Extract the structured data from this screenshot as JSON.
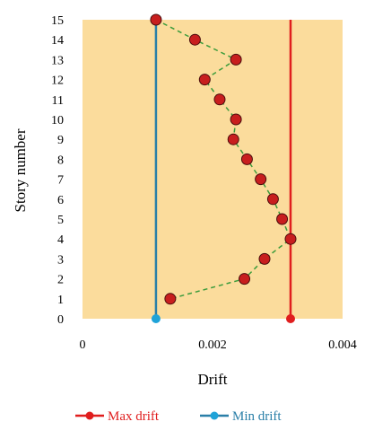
{
  "chart_data": {
    "type": "line",
    "xlabel": "Drift",
    "ylabel": "Story number",
    "xlim": [
      0,
      0.004
    ],
    "ylim": [
      0,
      15
    ],
    "x_ticks": [
      "0",
      "0.002",
      "0.004"
    ],
    "y_ticks": [
      "0",
      "1",
      "2",
      "3",
      "4",
      "5",
      "6",
      "7",
      "8",
      "9",
      "10",
      "11",
      "12",
      "13",
      "14",
      "15"
    ],
    "grid": false,
    "plot_background": "#fbdc9c",
    "legend_position": "bottom",
    "series": [
      {
        "key": "profile",
        "style": "dashed-markers",
        "color": "#3c9c3c",
        "marker_color": "#c81e1e",
        "points": [
          {
            "x": 0.00113,
            "y": 15
          },
          {
            "x": 0.00173,
            "y": 14
          },
          {
            "x": 0.00236,
            "y": 13
          },
          {
            "x": 0.00188,
            "y": 12
          },
          {
            "x": 0.00211,
            "y": 11
          },
          {
            "x": 0.00236,
            "y": 10
          },
          {
            "x": 0.00232,
            "y": 9
          },
          {
            "x": 0.00253,
            "y": 8
          },
          {
            "x": 0.00274,
            "y": 7
          },
          {
            "x": 0.00293,
            "y": 6
          },
          {
            "x": 0.00307,
            "y": 5
          },
          {
            "x": 0.0032,
            "y": 4
          },
          {
            "x": 0.0028,
            "y": 3
          },
          {
            "x": 0.00249,
            "y": 2
          },
          {
            "x": 0.00135,
            "y": 1
          }
        ]
      },
      {
        "key": "max",
        "name": "Max drift",
        "style": "vertical-line",
        "color": "#e01e1e",
        "x": 0.0032
      },
      {
        "key": "min",
        "name": "Min drift",
        "style": "vertical-line",
        "color": "#2a7fa8",
        "marker_color": "#1fa3d8",
        "x": 0.00113
      }
    ]
  }
}
